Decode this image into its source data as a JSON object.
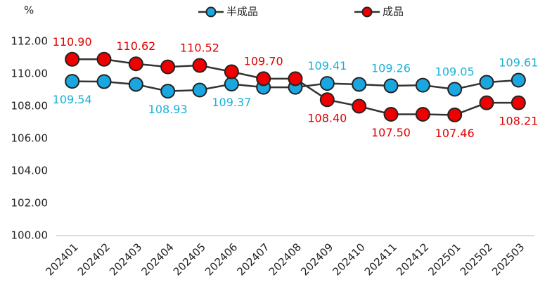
{
  "chart_data": {
    "type": "line",
    "y_label": "%",
    "categories": [
      "202401",
      "202402",
      "202403",
      "202404",
      "202405",
      "202406",
      "202407",
      "202408",
      "202409",
      "202410",
      "202411",
      "202412",
      "202501",
      "202502",
      "202503"
    ],
    "series": [
      {
        "name": "半成品",
        "color": "#1aa7e0",
        "label_color": "#1ab0d8",
        "values": [
          109.54,
          109.52,
          109.35,
          108.93,
          109.0,
          109.37,
          109.17,
          109.17,
          109.41,
          109.35,
          109.26,
          109.3,
          109.05,
          109.48,
          109.61
        ],
        "value_labels": [
          "109.54",
          null,
          null,
          "108.93",
          null,
          "109.37",
          null,
          null,
          "109.41",
          null,
          "109.26",
          null,
          "109.05",
          null,
          "109.61"
        ]
      },
      {
        "name": "成品",
        "color": "#ee0000",
        "label_color": "#e00000",
        "values": [
          110.9,
          110.9,
          110.62,
          110.43,
          110.52,
          110.13,
          109.7,
          109.7,
          108.4,
          108.0,
          107.5,
          107.5,
          107.46,
          108.21,
          108.21
        ],
        "value_labels": [
          "110.90",
          null,
          "110.62",
          null,
          "110.52",
          null,
          "109.70",
          null,
          "108.40",
          null,
          "107.50",
          null,
          "107.46",
          null,
          "108.21"
        ]
      }
    ],
    "ylim": [
      100,
      112
    ],
    "yticks": [
      {
        "value": 100,
        "label": "100.00"
      },
      {
        "value": 102,
        "label": "102.00"
      },
      {
        "value": 104,
        "label": "104.00"
      },
      {
        "value": 106,
        "label": "106.00"
      },
      {
        "value": 108,
        "label": "108.00"
      },
      {
        "value": 110,
        "label": "110.00"
      },
      {
        "value": 112,
        "label": "112.00"
      }
    ],
    "grid": false,
    "legend": "top"
  }
}
